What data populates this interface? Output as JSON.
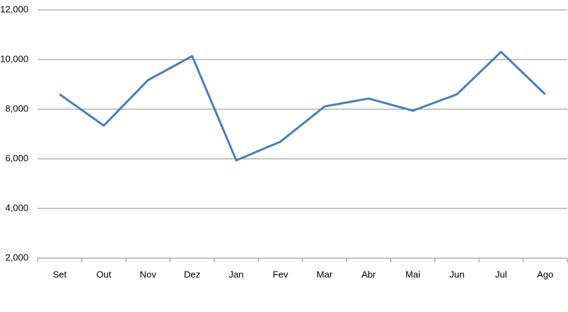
{
  "chart_data": {
    "type": "line",
    "categories": [
      "Set",
      "Out",
      "Nov",
      "Dez",
      "Jan",
      "Fev",
      "Mar",
      "Abr",
      "Mai",
      "Jun",
      "Jul",
      "Ago"
    ],
    "series": [
      {
        "color": "#4a7ebb",
        "values": [
          8600,
          7340,
          9170,
          10140,
          5940,
          6690,
          8110,
          8430,
          7940,
          8600,
          10310,
          8600
        ]
      }
    ],
    "ylim": [
      2000,
      12000
    ],
    "yticks": [
      {
        "value": 2000,
        "label": "2,000"
      },
      {
        "value": 4000,
        "label": "4,000"
      },
      {
        "value": 6000,
        "label": "6,000"
      },
      {
        "value": 8000,
        "label": "8,000"
      },
      {
        "value": 10000,
        "label": "10,000"
      },
      {
        "value": 12000,
        "label": "12,000"
      }
    ],
    "grid": true
  }
}
